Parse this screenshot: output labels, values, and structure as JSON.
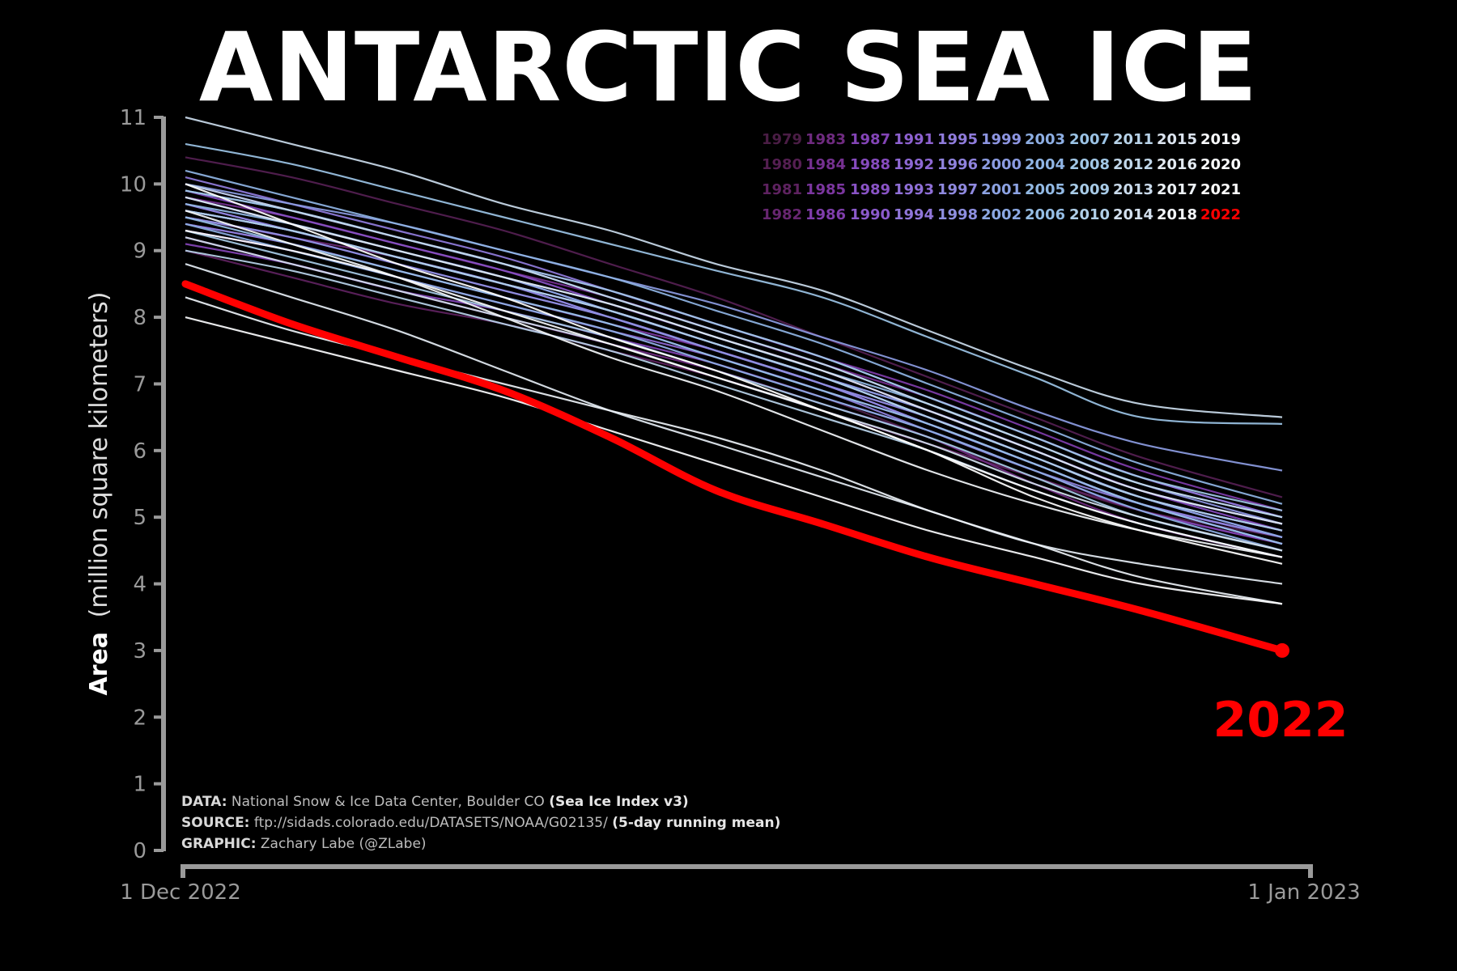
{
  "chart_data": {
    "type": "line",
    "title": "ANTARCTIC SEA ICE",
    "ylabel_bold": "Area",
    "ylabel_rest": "(million square kilometers)",
    "ylim": [
      0,
      11
    ],
    "yticks": [
      "0",
      "1",
      "2",
      "3",
      "4",
      "5",
      "6",
      "7",
      "8",
      "9",
      "10",
      "11"
    ],
    "x_start_label": "1 Dec 2022",
    "x_end_label": "1 Jan 2023",
    "x_days": [
      0,
      3,
      6,
      9,
      12,
      15,
      18,
      21,
      24,
      27,
      31
    ],
    "highlight_label": "2022",
    "highlight_color": "#ff0000",
    "series": [
      {
        "name": "1979",
        "color": "#4a1d45",
        "values": [
          9.3,
          9.0,
          8.6,
          8.2,
          7.8,
          7.3,
          6.8,
          6.2,
          5.6,
          5.1,
          4.7
        ]
      },
      {
        "name": "1980",
        "color": "#551f52",
        "values": [
          10.4,
          10.1,
          9.7,
          9.3,
          8.8,
          8.3,
          7.7,
          7.1,
          6.5,
          5.9,
          5.3
        ]
      },
      {
        "name": "1981",
        "color": "#5e2260",
        "values": [
          9.0,
          8.6,
          8.2,
          7.9,
          7.5,
          7.1,
          6.6,
          6.1,
          5.6,
          5.1,
          4.6
        ]
      },
      {
        "name": "1982",
        "color": "#672670",
        "values": [
          9.5,
          9.2,
          8.9,
          8.5,
          8.1,
          7.6,
          7.1,
          6.6,
          6.0,
          5.4,
          4.9
        ]
      },
      {
        "name": "1983",
        "color": "#6f2b80",
        "values": [
          9.2,
          8.8,
          8.4,
          8.0,
          7.6,
          7.2,
          6.7,
          6.2,
          5.5,
          4.9,
          4.4
        ]
      },
      {
        "name": "1984",
        "color": "#753090",
        "values": [
          9.8,
          9.5,
          9.1,
          8.7,
          8.3,
          7.8,
          7.3,
          6.8,
          6.2,
          5.6,
          5.0
        ]
      },
      {
        "name": "1985",
        "color": "#7b369f",
        "values": [
          9.4,
          9.1,
          8.7,
          8.3,
          7.9,
          7.5,
          7.0,
          6.5,
          5.9,
          5.3,
          4.8
        ]
      },
      {
        "name": "1986",
        "color": "#7f3dab",
        "values": [
          10.0,
          9.6,
          9.2,
          8.8,
          8.4,
          7.9,
          7.4,
          6.9,
          6.3,
          5.7,
          5.1
        ]
      },
      {
        "name": "1987",
        "color": "#8344b6",
        "values": [
          9.1,
          8.8,
          8.4,
          8.1,
          7.7,
          7.3,
          6.8,
          6.3,
          5.7,
          5.1,
          4.6
        ]
      },
      {
        "name": "1988",
        "color": "#864bbe",
        "values": [
          9.6,
          9.3,
          8.9,
          8.5,
          8.1,
          7.6,
          7.1,
          6.6,
          6.0,
          5.4,
          4.8
        ]
      },
      {
        "name": "1989",
        "color": "#8953c5",
        "values": [
          9.9,
          9.5,
          9.1,
          8.7,
          8.2,
          7.7,
          7.2,
          6.6,
          6.0,
          5.4,
          4.9
        ]
      },
      {
        "name": "1990",
        "color": "#8b5acb",
        "values": [
          9.7,
          9.3,
          8.9,
          8.5,
          8.1,
          7.6,
          7.1,
          6.5,
          5.9,
          5.3,
          4.7
        ]
      },
      {
        "name": "1991",
        "color": "#8d61d0",
        "values": [
          9.5,
          9.2,
          8.8,
          8.4,
          8.0,
          7.5,
          7.0,
          6.4,
          5.8,
          5.2,
          4.6
        ]
      },
      {
        "name": "1992",
        "color": "#8e68d4",
        "values": [
          9.3,
          9.0,
          8.6,
          8.2,
          7.8,
          7.4,
          6.9,
          6.4,
          5.8,
          5.2,
          4.6
        ]
      },
      {
        "name": "1993",
        "color": "#8f6fd7",
        "values": [
          9.8,
          9.4,
          9.0,
          8.6,
          8.1,
          7.6,
          7.1,
          6.5,
          5.9,
          5.3,
          4.8
        ]
      },
      {
        "name": "1994",
        "color": "#9076da",
        "values": [
          9.6,
          9.3,
          8.9,
          8.5,
          8.0,
          7.5,
          7.0,
          6.4,
          5.8,
          5.2,
          4.7
        ]
      },
      {
        "name": "1995",
        "color": "#907cdc",
        "values": [
          10.1,
          9.7,
          9.3,
          8.9,
          8.4,
          7.9,
          7.4,
          6.8,
          6.2,
          5.6,
          5.0
        ]
      },
      {
        "name": "1996",
        "color": "#9083de",
        "values": [
          9.4,
          9.1,
          8.7,
          8.3,
          7.9,
          7.4,
          6.9,
          6.3,
          5.7,
          5.2,
          4.7
        ]
      },
      {
        "name": "1997",
        "color": "#8f89df",
        "values": [
          9.7,
          9.3,
          8.9,
          8.5,
          8.0,
          7.5,
          7.0,
          6.4,
          5.8,
          5.2,
          4.6
        ]
      },
      {
        "name": "1998",
        "color": "#8e8fe0",
        "values": [
          9.5,
          9.2,
          8.8,
          8.4,
          8.0,
          7.5,
          7.0,
          6.5,
          5.9,
          5.3,
          4.8
        ]
      },
      {
        "name": "1999",
        "color": "#8d95e1",
        "values": [
          9.9,
          9.6,
          9.2,
          8.8,
          8.3,
          7.8,
          7.3,
          6.7,
          6.1,
          5.5,
          4.9
        ]
      },
      {
        "name": "2000",
        "color": "#8c9ce2",
        "values": [
          10.0,
          9.7,
          9.4,
          9.0,
          8.6,
          8.2,
          7.7,
          7.2,
          6.6,
          6.1,
          5.7
        ]
      },
      {
        "name": "2001",
        "color": "#8ca2e2",
        "values": [
          9.6,
          9.3,
          8.9,
          8.5,
          8.1,
          7.6,
          7.1,
          6.6,
          6.0,
          5.4,
          4.9
        ]
      },
      {
        "name": "2002",
        "color": "#8ca8e3",
        "values": [
          9.8,
          9.4,
          9.0,
          8.6,
          8.1,
          7.6,
          7.1,
          6.5,
          5.9,
          5.3,
          4.7
        ]
      },
      {
        "name": "2003",
        "color": "#8daee3",
        "values": [
          9.4,
          9.0,
          8.6,
          8.2,
          7.8,
          7.3,
          6.8,
          6.3,
          5.7,
          5.1,
          4.5
        ]
      },
      {
        "name": "2004",
        "color": "#8fb4e4",
        "values": [
          10.2,
          9.8,
          9.4,
          9.0,
          8.6,
          8.1,
          7.6,
          7.0,
          6.4,
          5.8,
          5.2
        ]
      },
      {
        "name": "2005",
        "color": "#92b9e4",
        "values": [
          9.7,
          9.4,
          9.0,
          8.6,
          8.2,
          7.7,
          7.2,
          6.7,
          6.1,
          5.5,
          5.0
        ]
      },
      {
        "name": "2006",
        "color": "#96bee5",
        "values": [
          9.5,
          9.1,
          8.7,
          8.3,
          7.9,
          7.4,
          6.9,
          6.4,
          5.8,
          5.2,
          4.6
        ]
      },
      {
        "name": "2007",
        "color": "#9bc3e5",
        "values": [
          10.6,
          10.3,
          9.9,
          9.5,
          9.1,
          8.7,
          8.3,
          7.7,
          7.1,
          6.5,
          6.4
        ]
      },
      {
        "name": "2008",
        "color": "#a1c7e6",
        "values": [
          9.9,
          9.6,
          9.2,
          8.8,
          8.4,
          7.9,
          7.4,
          6.8,
          6.2,
          5.6,
          5.1
        ]
      },
      {
        "name": "2009",
        "color": "#a8cbe7",
        "values": [
          9.3,
          8.9,
          8.5,
          8.1,
          7.7,
          7.2,
          6.7,
          6.2,
          5.6,
          5.0,
          4.5
        ]
      },
      {
        "name": "2010",
        "color": "#b0cfe8",
        "values": [
          9.6,
          9.3,
          8.9,
          8.5,
          8.1,
          7.6,
          7.1,
          6.5,
          5.9,
          5.3,
          4.8
        ]
      },
      {
        "name": "2011",
        "color": "#b8d3e9",
        "values": [
          9.0,
          8.7,
          8.3,
          7.9,
          7.5,
          7.0,
          6.5,
          6.0,
          5.4,
          4.9,
          4.4
        ]
      },
      {
        "name": "2012",
        "color": "#c1d7ea",
        "values": [
          10.0,
          9.6,
          9.2,
          8.8,
          8.3,
          7.8,
          7.3,
          6.7,
          6.1,
          5.5,
          5.0
        ]
      },
      {
        "name": "2013",
        "color": "#cadbec",
        "values": [
          11.0,
          10.6,
          10.2,
          9.7,
          9.3,
          8.8,
          8.4,
          7.8,
          7.2,
          6.7,
          6.5
        ]
      },
      {
        "name": "2014",
        "color": "#d3e0ee",
        "values": [
          9.2,
          8.8,
          8.4,
          8.0,
          7.6,
          7.1,
          6.6,
          6.1,
          5.5,
          5.0,
          4.5
        ]
      },
      {
        "name": "2015",
        "color": "#dce5f0",
        "values": [
          9.8,
          9.4,
          9.0,
          8.6,
          8.2,
          7.7,
          7.2,
          6.6,
          6.0,
          5.4,
          4.9
        ]
      },
      {
        "name": "2016",
        "color": "#e4ebf3",
        "values": [
          8.8,
          8.3,
          7.8,
          7.2,
          6.6,
          6.1,
          5.6,
          5.1,
          4.6,
          4.3,
          4.0
        ]
      },
      {
        "name": "2017",
        "color": "#ecf1f6",
        "values": [
          8.3,
          7.8,
          7.4,
          7.0,
          6.6,
          6.2,
          5.7,
          5.1,
          4.6,
          4.1,
          3.7
        ]
      },
      {
        "name": "2018",
        "color": "#f3f6fa",
        "values": [
          9.6,
          9.1,
          8.6,
          8.0,
          7.4,
          6.9,
          6.3,
          5.7,
          5.2,
          4.8,
          4.4
        ]
      },
      {
        "name": "2019",
        "color": "#f8fafc",
        "values": [
          9.3,
          9.0,
          8.6,
          8.1,
          7.6,
          7.1,
          6.6,
          6.0,
          5.4,
          4.9,
          4.4
        ]
      },
      {
        "name": "2020",
        "color": "#fbfcfe",
        "values": [
          8.0,
          7.6,
          7.2,
          6.8,
          6.3,
          5.8,
          5.3,
          4.8,
          4.4,
          4.0,
          3.7
        ]
      },
      {
        "name": "2021",
        "color": "#ffffff",
        "values": [
          10.0,
          9.4,
          8.8,
          8.3,
          7.7,
          7.2,
          6.6,
          6.0,
          5.3,
          4.8,
          4.3
        ]
      },
      {
        "name": "2022",
        "color": "#ff0000",
        "values": [
          8.5,
          7.9,
          7.4,
          6.9,
          6.2,
          5.4,
          4.9,
          4.4,
          4.0,
          3.6,
          3.0
        ]
      }
    ]
  },
  "credits": {
    "data_label": "DATA:",
    "data_text": "National Snow & Ice Data Center, Boulder CO",
    "data_paren": "(Sea Ice Index v3)",
    "source_label": "SOURCE:",
    "source_text": "ftp://sidads.colorado.edu/DATASETS/NOAA/G02135/",
    "source_paren": "(5-day running mean)",
    "graphic_label": "GRAPHIC:",
    "graphic_text": "Zachary Labe (@ZLabe)"
  }
}
